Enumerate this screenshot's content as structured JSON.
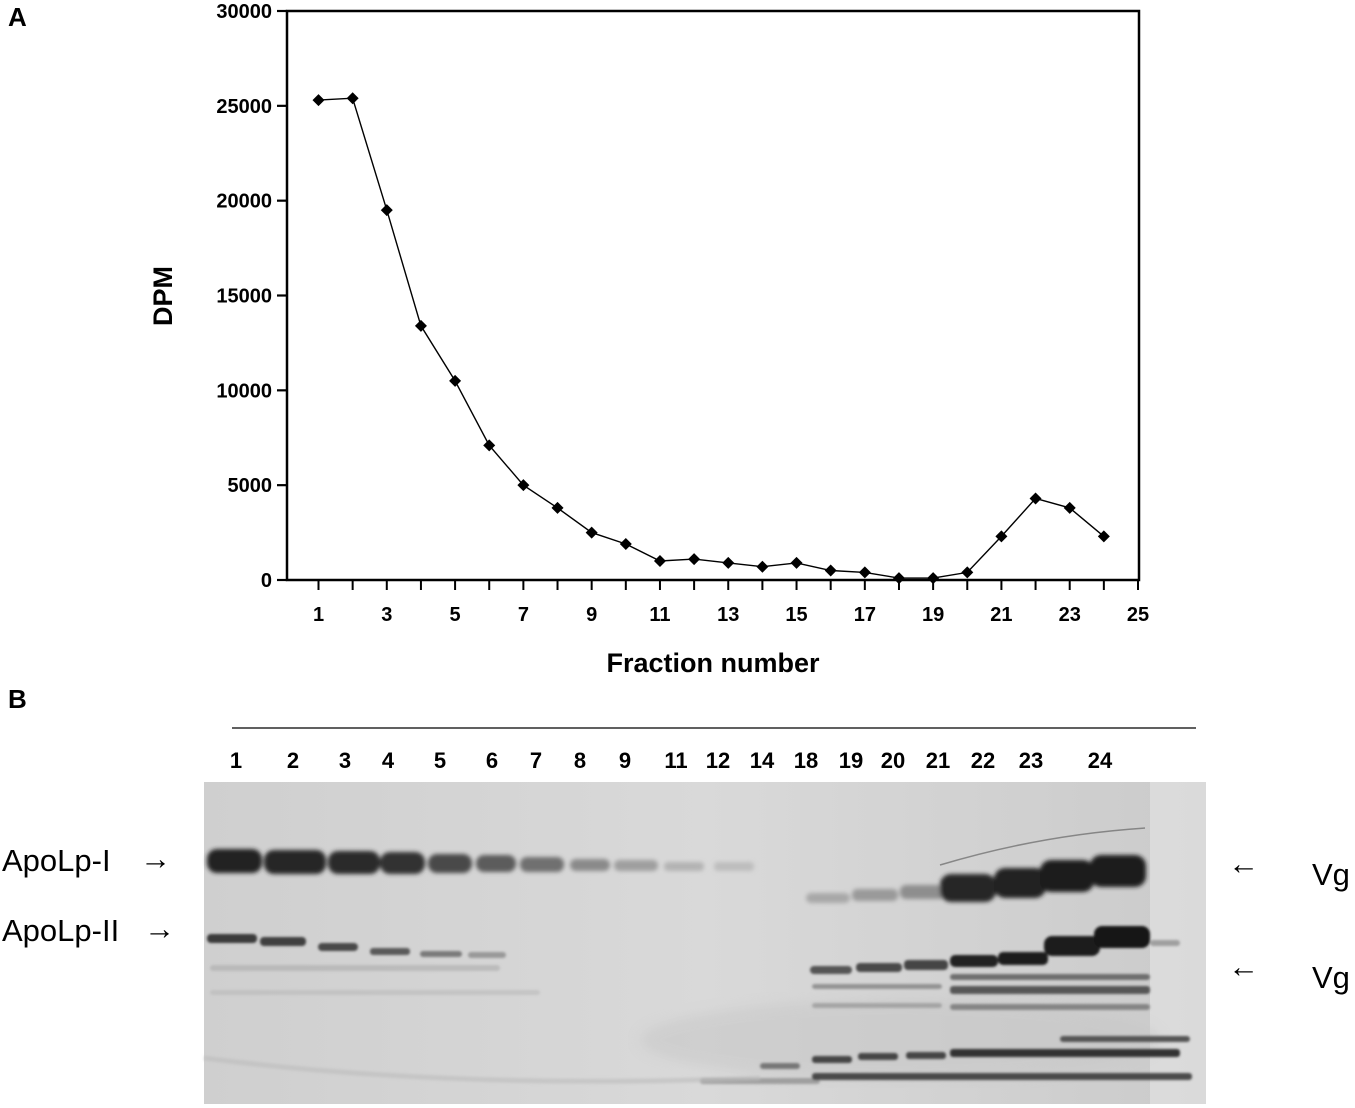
{
  "panels": {
    "a": "A",
    "b": "B"
  },
  "chart_data": {
    "type": "line",
    "xlabel": "Fraction number",
    "ylabel": "DPM",
    "xlim": [
      0,
      25
    ],
    "ylim": [
      0,
      30000
    ],
    "xticks": [
      1,
      3,
      5,
      7,
      9,
      11,
      13,
      15,
      17,
      19,
      21,
      23,
      25
    ],
    "yticks": [
      0,
      5000,
      10000,
      15000,
      20000,
      25000,
      30000
    ],
    "grid": false,
    "series": [
      {
        "marker": "diamond",
        "x": [
          1,
          2,
          3,
          4,
          5,
          6,
          7,
          8,
          9,
          10,
          11,
          12,
          13,
          14,
          15,
          16,
          17,
          18,
          19,
          20,
          21,
          22,
          23,
          24
        ],
        "y": [
          25300,
          25400,
          19500,
          13400,
          10500,
          7100,
          5000,
          3800,
          2500,
          1900,
          1000,
          1100,
          900,
          700,
          900,
          500,
          400,
          100,
          100,
          400,
          2300,
          4300,
          3800,
          2300
        ]
      }
    ]
  },
  "gel": {
    "lanes": [
      "1",
      "2",
      "3",
      "4",
      "5",
      "6",
      "7",
      "8",
      "9",
      "11",
      "12",
      "14",
      "18",
      "19",
      "20",
      "21",
      "22",
      "23",
      "24"
    ],
    "left_labels": [
      "ApoLp-I",
      "ApoLp-II"
    ],
    "right_labels": [
      "Vg",
      "Vg"
    ],
    "arrow_left": "→",
    "arrow_right": "←"
  }
}
